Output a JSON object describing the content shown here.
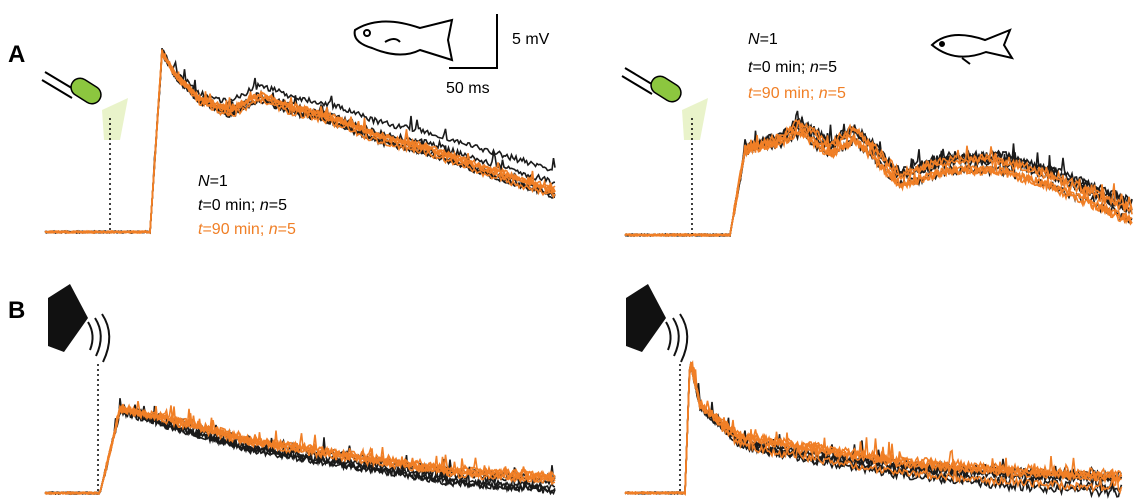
{
  "panel_labels": [
    "A",
    "B"
  ],
  "scale_bar": {
    "voltage": "5 mV",
    "time": "50 ms"
  },
  "legends": [
    {
      "animals": [
        "N",
        "=1"
      ],
      "control": [
        "t",
        "=0 min; ",
        "n",
        "=5"
      ],
      "treated": [
        "t",
        "=90 min; ",
        "n",
        "=5"
      ]
    },
    {
      "animals": [
        "N",
        "=1"
      ],
      "control": [
        "t",
        "=0 min; ",
        "n",
        "=5"
      ],
      "treated": [
        "t",
        "=90 min; ",
        "n",
        "=5"
      ]
    }
  ]
}
